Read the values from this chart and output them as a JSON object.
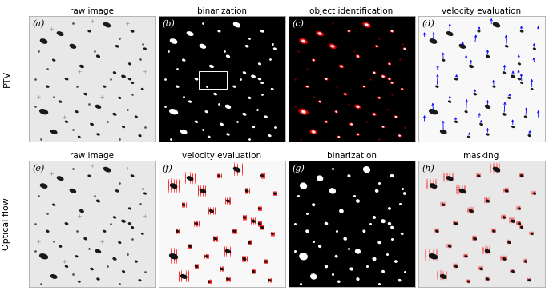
{
  "title_row1": [
    "raw image",
    "binarization",
    "object identification",
    "velocity evaluation"
  ],
  "title_row2": [
    "raw image",
    "velocity evaluation",
    "binarization",
    "masking"
  ],
  "panel_labels": [
    "(a)",
    "(b)",
    "(c)",
    "(d)",
    "(e)",
    "(f)",
    "(g)",
    "(h)"
  ],
  "row_labels": [
    "PTV",
    "Optical flow"
  ],
  "figure_bg": "#ffffff",
  "label_fontsize": 7.5,
  "panel_label_fontsize": 8,
  "row_label_fontsize": 8
}
